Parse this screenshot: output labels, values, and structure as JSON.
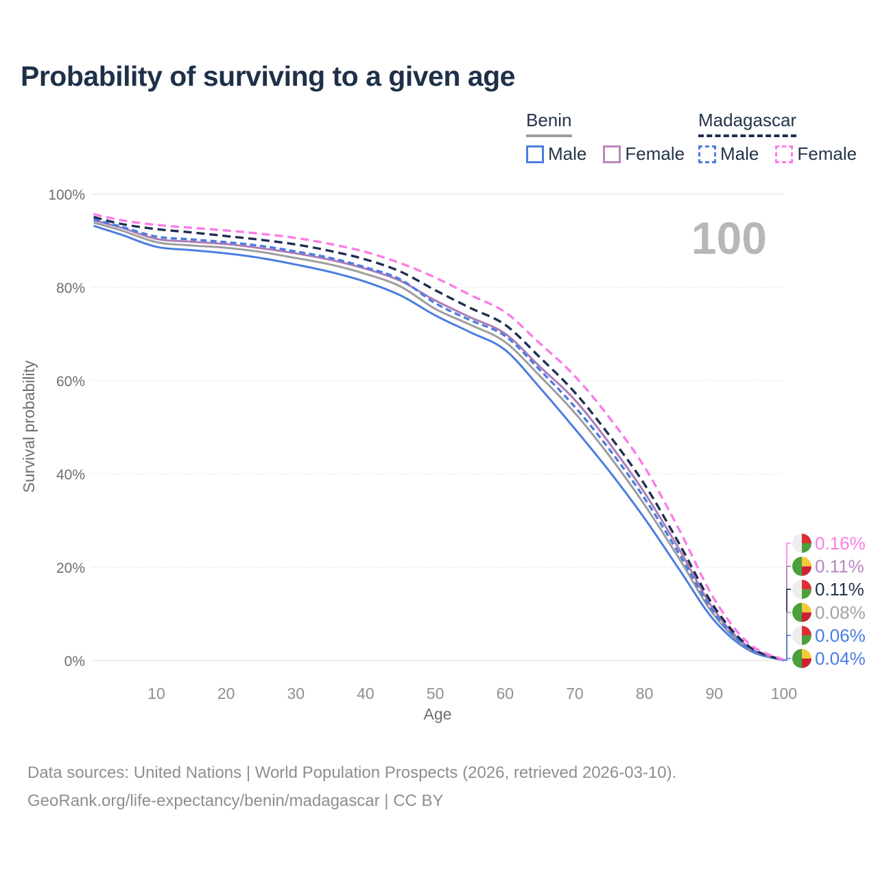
{
  "title": "Probability of surviving to a given age",
  "watermark": "100",
  "legend": {
    "groups": [
      {
        "label": "Benin",
        "line_style": "solid",
        "underline_color": "#9d9d9d",
        "items": [
          {
            "label": "Male",
            "color": "#4a7de0"
          },
          {
            "label": "Female",
            "color": "#bd85bd"
          }
        ]
      },
      {
        "label": "Madagascar",
        "line_style": "dashed",
        "underline_color": "#1e2e4f",
        "items": [
          {
            "label": "Male",
            "color": "#4a7de0"
          },
          {
            "label": "Female",
            "color": "#fb7ce6"
          }
        ]
      }
    ]
  },
  "chart_data": {
    "type": "line",
    "title": "Probability of surviving to a given age",
    "xlabel": "Age",
    "ylabel": "Survival probability",
    "xlim": [
      0,
      100
    ],
    "ylim": [
      0,
      100
    ],
    "grid": "horizontal",
    "legend_position": "top-right",
    "x_ticks": [
      10,
      20,
      30,
      40,
      50,
      60,
      70,
      80,
      90,
      100
    ],
    "y_ticks": [
      0,
      20,
      40,
      60,
      80,
      100
    ],
    "y_tick_suffix": "%",
    "x": [
      1,
      5,
      10,
      15,
      20,
      25,
      30,
      35,
      40,
      45,
      50,
      55,
      60,
      65,
      70,
      75,
      80,
      85,
      90,
      95,
      100
    ],
    "series": [
      {
        "name": "Benin — Male",
        "country": "Benin",
        "sex": "Male",
        "line_color": "#4a7de0",
        "dashed": false,
        "flag": "benin",
        "end_label": "0.04%",
        "end_label_color": "#4a7de0",
        "label_row": 5,
        "values": [
          93.2,
          91.3,
          88.7,
          88.0,
          87.3,
          86.3,
          84.9,
          83.3,
          81.2,
          78.3,
          74.0,
          70.4,
          66.6,
          58.5,
          49.7,
          40.5,
          30.5,
          19.5,
          8.6,
          2.2,
          0.04
        ]
      },
      {
        "name": "Benin — Both sexes",
        "country": "Benin",
        "sex": "Both",
        "line_color": "#9d9d9d",
        "dashed": false,
        "flag": "benin",
        "end_label": "0.08%",
        "end_label_color": "#a3a3a3",
        "label_row": 3,
        "values": [
          93.9,
          92.2,
          89.7,
          89.0,
          88.5,
          87.6,
          86.3,
          84.9,
          82.9,
          80.2,
          75.4,
          72.0,
          68.3,
          61.0,
          53.1,
          43.8,
          33.4,
          21.8,
          9.7,
          2.5,
          0.08
        ]
      },
      {
        "name": "Benin — Female",
        "country": "Benin",
        "sex": "Female",
        "line_color": "#ad7cb5",
        "dashed": false,
        "flag": "benin",
        "end_label": "0.11%",
        "end_label_color": "#b585c2",
        "label_row": 1,
        "values": [
          94.4,
          92.8,
          90.4,
          89.8,
          89.3,
          88.4,
          87.3,
          85.9,
          84.0,
          81.4,
          77.2,
          73.6,
          70.1,
          63.0,
          55.9,
          46.5,
          36.0,
          23.8,
          10.8,
          2.8,
          0.11
        ]
      },
      {
        "name": "Madagascar — Male",
        "country": "Madagascar",
        "sex": "Male",
        "line_color": "#4a7de0",
        "dashed": true,
        "dash_array": "9 5.5",
        "flag": "madagascar",
        "end_label": "0.06%",
        "end_label_color": "#4a7de0",
        "label_row": 4,
        "values": [
          94.6,
          93.0,
          90.9,
          90.3,
          89.7,
          88.9,
          87.7,
          86.3,
          84.3,
          81.7,
          76.6,
          73.0,
          69.6,
          62.3,
          54.4,
          45.2,
          34.8,
          22.8,
          10.2,
          2.6,
          0.06
        ]
      },
      {
        "name": "Madagascar — Both sexes",
        "country": "Madagascar",
        "sex": "Both",
        "line_color": "#1e2e4f",
        "dashed": true,
        "dash_array": "12 7",
        "flag": "madagascar",
        "end_label": "0.11%",
        "end_label_color": "#22334d",
        "label_row": 2,
        "values": [
          95.1,
          93.6,
          92.5,
          91.8,
          91.0,
          90.2,
          89.2,
          87.8,
          86.0,
          83.4,
          79.4,
          75.6,
          72.0,
          65.0,
          57.5,
          48.2,
          37.8,
          25.0,
          11.5,
          3.0,
          0.11
        ]
      },
      {
        "name": "Madagascar — Female",
        "country": "Madagascar",
        "sex": "Female",
        "line_color": "#fb7ce6",
        "dashed": true,
        "dash_array": "12 7",
        "flag": "madagascar",
        "end_label": "0.16%",
        "end_label_color": "#fc7de4",
        "label_row": 0,
        "values": [
          95.7,
          94.4,
          93.4,
          92.8,
          92.2,
          91.5,
          90.6,
          89.3,
          87.6,
          85.2,
          82.1,
          78.4,
          74.7,
          68.0,
          61.0,
          52.0,
          41.5,
          28.0,
          13.2,
          3.6,
          0.16
        ]
      }
    ],
    "flag_colors": {
      "benin": {
        "left": "#4d9f3c",
        "top_right": "#f3cb3a",
        "bottom_right": "#cc2036"
      },
      "madagascar": {
        "left": "#ededed",
        "top_right": "#dd2e35",
        "bottom_right": "#4d9f3c"
      }
    }
  },
  "footer": {
    "line1": "Data sources: United Nations | World Population Prospects (2026, retrieved 2026-03-10).",
    "line2": "GeoRank.org/life-expectancy/benin/madagascar | CC BY"
  }
}
